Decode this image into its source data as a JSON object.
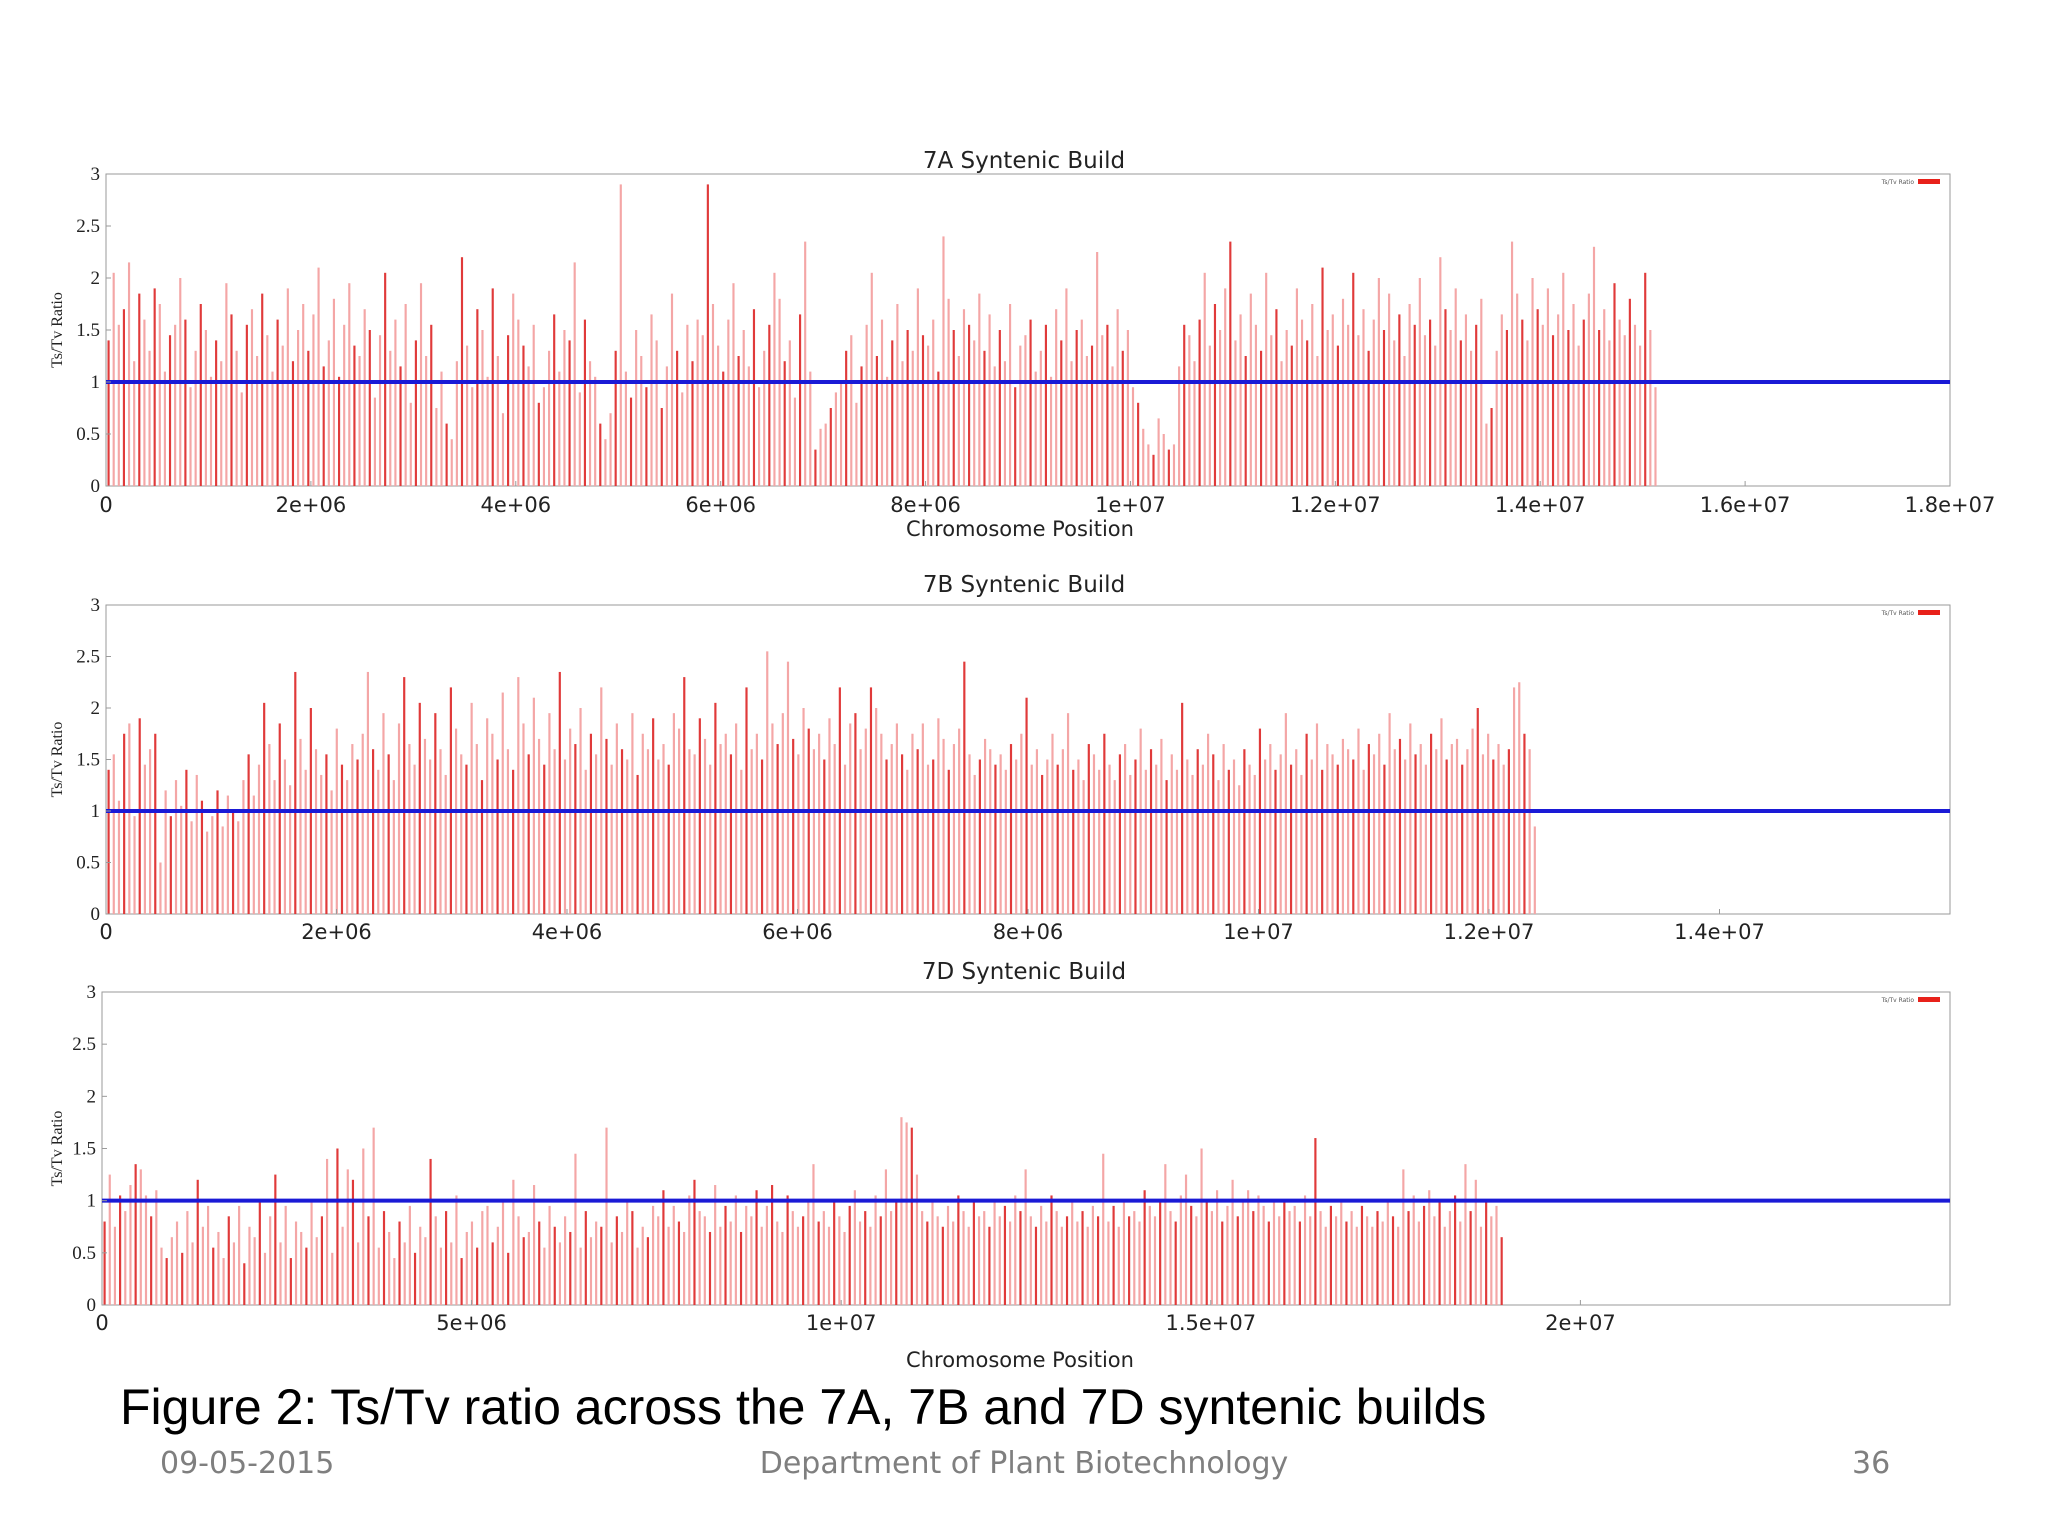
{
  "colors": {
    "bar_dark": "#e03a3a",
    "bar_light": "#f4a6a6",
    "reference_line": "#1a1ad6",
    "axis": "#9a9a9a",
    "legend": "#e8211a"
  },
  "chart_data": [
    {
      "type": "bar",
      "title": "7A Syntenic Build",
      "xlabel": "Chromosome Position",
      "ylabel": "Ts/Tv Ratio",
      "xlim": [
        0,
        18000000
      ],
      "ylim": [
        0,
        3
      ],
      "xticks": [
        0,
        2000000,
        4000000,
        6000000,
        8000000,
        10000000,
        12000000,
        14000000,
        16000000,
        18000000
      ],
      "xtick_labels": [
        "0",
        "2e+06",
        "4e+06",
        "6e+06",
        "8e+06",
        "1e+07",
        "1.2e+07",
        "1.4e+07",
        "1.6e+07",
        "1.8e+07"
      ],
      "yticks": [
        0,
        0.5,
        1,
        1.5,
        2,
        2.5,
        3
      ],
      "ytick_labels": [
        "0",
        "0.5",
        "1",
        "1.5",
        "2",
        "2.5",
        "3"
      ],
      "legend": "Ts/Tv Ratio",
      "legend_position": "top-right",
      "reference_line": 1,
      "series": [
        {
          "name": "Ts/Tv Ratio",
          "bin_start": 0,
          "bin_width": 50000,
          "values": [
            1.4,
            2.05,
            1.55,
            1.7,
            2.15,
            1.2,
            1.85,
            1.6,
            1.3,
            1.9,
            1.75,
            1.1,
            1.45,
            1.55,
            2.0,
            1.6,
            0.95,
            1.3,
            1.75,
            1.5,
            1.05,
            1.4,
            1.2,
            1.95,
            1.65,
            1.3,
            0.9,
            1.55,
            1.7,
            1.25,
            1.85,
            1.45,
            1.1,
            1.6,
            1.35,
            1.9,
            1.2,
            1.5,
            1.75,
            1.3,
            1.65,
            2.1,
            1.15,
            1.4,
            1.8,
            1.05,
            1.55,
            1.95,
            1.35,
            1.25,
            1.7,
            1.5,
            0.85,
            1.45,
            2.05,
            1.3,
            1.6,
            1.15,
            1.75,
            0.8,
            1.4,
            1.95,
            1.25,
            1.55,
            0.75,
            1.1,
            0.6,
            0.45,
            1.2,
            2.2,
            1.35,
            0.95,
            1.7,
            1.5,
            1.05,
            1.9,
            1.25,
            0.7,
            1.45,
            1.85,
            1.6,
            1.35,
            1.15,
            1.55,
            0.8,
            0.95,
            1.3,
            1.65,
            1.1,
            1.5,
            1.4,
            2.15,
            0.9,
            1.6,
            1.2,
            1.05,
            0.6,
            0.45,
            0.7,
            1.3,
            2.9,
            1.1,
            0.85,
            1.5,
            1.25,
            0.95,
            1.65,
            1.4,
            0.75,
            1.15,
            1.85,
            1.3,
            0.9,
            1.55,
            1.2,
            1.6,
            1.45,
            2.9,
            1.75,
            1.35,
            1.1,
            1.6,
            1.95,
            1.25,
            1.5,
            1.15,
            1.7,
            0.95,
            1.3,
            1.55,
            2.05,
            1.8,
            1.2,
            1.4,
            0.85,
            1.65,
            2.35,
            1.1,
            0.35,
            0.55,
            0.6,
            0.75,
            0.9,
            1.0,
            1.3,
            1.45,
            0.8,
            1.15,
            1.55,
            2.05,
            1.25,
            1.6,
            1.05,
            1.4,
            1.75,
            1.2,
            1.5,
            1.3,
            1.9,
            1.45,
            1.35,
            1.6,
            1.1,
            2.4,
            1.8,
            1.5,
            1.25,
            1.7,
            1.55,
            1.4,
            1.85,
            1.3,
            1.65,
            1.15,
            1.5,
            1.2,
            1.75,
            0.95,
            1.35,
            1.45,
            1.6,
            1.1,
            1.3,
            1.55,
            1.05,
            1.7,
            1.4,
            1.9,
            1.2,
            1.5,
            1.6,
            1.25,
            1.35,
            2.25,
            1.45,
            1.55,
            1.15,
            1.7,
            1.3,
            1.5,
            0.95,
            0.8,
            0.55,
            0.4,
            0.3,
            0.65,
            0.5,
            0.35,
            0.4,
            1.15,
            1.55,
            1.45,
            1.2,
            1.6,
            2.05,
            1.35,
            1.75,
            1.5,
            1.9,
            2.35,
            1.4,
            1.65,
            1.25,
            1.85,
            1.55,
            1.3,
            2.05,
            1.45,
            1.7,
            1.2,
            1.5,
            1.35,
            1.9,
            1.6,
            1.4,
            1.75,
            1.25,
            2.1,
            1.5,
            1.65,
            1.35,
            1.8,
            1.55,
            2.05,
            1.45,
            1.7,
            1.3,
            1.6,
            2.0,
            1.5,
            1.85,
            1.4,
            1.65,
            1.25,
            1.75,
            1.55,
            2.0,
            1.45,
            1.6,
            1.35,
            2.2,
            1.7,
            1.5,
            1.9,
            1.4,
            1.65,
            1.3,
            1.55,
            1.8,
            0.6,
            0.75,
            1.3,
            1.65,
            1.5,
            2.35,
            1.85,
            1.6,
            1.4,
            2.0,
            1.7,
            1.55,
            1.9,
            1.45,
            1.65,
            2.05,
            1.5,
            1.75,
            1.35,
            1.6,
            1.85,
            2.3,
            1.5,
            1.7,
            1.4,
            1.95,
            1.6,
            1.45,
            1.8,
            1.55,
            1.35,
            2.05,
            1.5,
            0.95
          ]
        }
      ]
    },
    {
      "type": "bar",
      "title": "7B Syntenic Build",
      "xlabel": "",
      "ylabel": "Ts/Tv Ratio",
      "xlim": [
        0,
        16000000
      ],
      "ylim": [
        0,
        3
      ],
      "xticks": [
        0,
        2000000,
        4000000,
        6000000,
        8000000,
        10000000,
        12000000,
        14000000
      ],
      "xtick_labels": [
        "0",
        "2e+06",
        "4e+06",
        "6e+06",
        "8e+06",
        "1e+07",
        "1.2e+07",
        "1.4e+07"
      ],
      "yticks": [
        0,
        0.5,
        1,
        1.5,
        2,
        2.5,
        3
      ],
      "ytick_labels": [
        "0",
        "0.5",
        "1",
        "1.5",
        "2",
        "2.5",
        "3"
      ],
      "legend": "Ts/Tv Ratio",
      "legend_position": "top-right",
      "reference_line": 1,
      "series": [
        {
          "name": "Ts/Tv Ratio",
          "bin_start": 0,
          "bin_width": 45000,
          "values": [
            1.4,
            1.55,
            1.1,
            1.75,
            1.85,
            0.95,
            1.9,
            1.45,
            1.6,
            1.75,
            0.5,
            1.2,
            0.95,
            1.3,
            1.05,
            1.4,
            0.9,
            1.35,
            1.1,
            0.8,
            0.95,
            1.2,
            0.85,
            1.15,
            1.0,
            0.9,
            1.3,
            1.55,
            1.15,
            1.45,
            2.05,
            1.65,
            1.3,
            1.85,
            1.5,
            1.25,
            2.35,
            1.7,
            1.4,
            2.0,
            1.6,
            1.35,
            1.55,
            1.2,
            1.8,
            1.45,
            1.3,
            1.65,
            1.5,
            1.75,
            2.35,
            1.6,
            1.4,
            1.95,
            1.55,
            1.3,
            1.85,
            2.3,
            1.65,
            1.45,
            2.05,
            1.7,
            1.5,
            1.95,
            1.6,
            1.35,
            2.2,
            1.8,
            1.55,
            1.45,
            2.05,
            1.65,
            1.3,
            1.9,
            1.75,
            1.5,
            2.15,
            1.6,
            1.4,
            2.3,
            1.85,
            1.55,
            2.1,
            1.7,
            1.45,
            1.95,
            1.6,
            2.35,
            1.5,
            1.8,
            1.65,
            2.0,
            1.4,
            1.75,
            1.55,
            2.2,
            1.7,
            1.45,
            1.85,
            1.6,
            1.5,
            1.95,
            1.35,
            1.75,
            1.6,
            1.9,
            1.5,
            1.65,
            1.45,
            1.95,
            1.8,
            2.3,
            1.6,
            1.55,
            1.9,
            1.7,
            1.45,
            2.05,
            1.65,
            1.75,
            1.55,
            1.85,
            1.4,
            2.2,
            1.6,
            1.75,
            1.5,
            2.55,
            1.85,
            1.65,
            1.95,
            2.45,
            1.7,
            1.55,
            2.0,
            1.8,
            1.6,
            1.75,
            1.5,
            1.9,
            1.65,
            2.2,
            1.45,
            1.85,
            1.95,
            1.6,
            1.8,
            2.2,
            2.0,
            1.75,
            1.5,
            1.65,
            1.85,
            1.55,
            1.4,
            1.75,
            1.6,
            1.85,
            1.45,
            1.5,
            1.9,
            1.7,
            1.4,
            1.65,
            1.8,
            2.45,
            1.55,
            1.35,
            1.5,
            1.7,
            1.6,
            1.45,
            1.55,
            1.4,
            1.65,
            1.5,
            1.75,
            2.1,
            1.45,
            1.6,
            1.35,
            1.5,
            1.75,
            1.45,
            1.6,
            1.95,
            1.4,
            1.5,
            1.3,
            1.65,
            1.55,
            1.4,
            1.75,
            1.45,
            1.3,
            1.55,
            1.65,
            1.35,
            1.5,
            1.8,
            1.4,
            1.6,
            1.45,
            1.7,
            1.3,
            1.55,
            1.4,
            2.05,
            1.5,
            1.35,
            1.6,
            1.45,
            1.75,
            1.55,
            1.3,
            1.65,
            1.4,
            1.5,
            1.25,
            1.6,
            1.45,
            1.35,
            1.8,
            1.5,
            1.65,
            1.4,
            1.55,
            1.95,
            1.45,
            1.6,
            1.35,
            1.75,
            1.5,
            1.85,
            1.4,
            1.65,
            1.55,
            1.45,
            1.7,
            1.6,
            1.5,
            1.8,
            1.4,
            1.65,
            1.55,
            1.75,
            1.45,
            1.95,
            1.6,
            1.7,
            1.5,
            1.85,
            1.55,
            1.65,
            1.45,
            1.75,
            1.6,
            1.9,
            1.5,
            1.65,
            1.7,
            1.45,
            1.6,
            1.8,
            2.0,
            1.55,
            1.75,
            1.5,
            1.65,
            1.45,
            1.6,
            2.2,
            2.25,
            1.75,
            1.6,
            0.85
          ]
        }
      ]
    },
    {
      "type": "bar",
      "title": "7D Syntenic Build",
      "xlabel": "Chromosome Position",
      "ylabel": "Ts/Tv Ratio",
      "xlim": [
        0,
        25000000
      ],
      "ylim": [
        0,
        3
      ],
      "xticks": [
        0,
        5000000,
        10000000,
        15000000,
        20000000
      ],
      "xtick_labels": [
        "0",
        "5e+06",
        "1e+07",
        "1.5e+07",
        "2e+07"
      ],
      "yticks": [
        0,
        0.5,
        1,
        1.5,
        2,
        2.5,
        3
      ],
      "ytick_labels": [
        "0",
        "0.5",
        "1",
        "1.5",
        "2",
        "2.5",
        "3"
      ],
      "legend": "Ts/Tv Ratio",
      "legend_position": "top-right",
      "reference_line": 1,
      "series": [
        {
          "name": "Ts/Tv Ratio",
          "bin_start": 0,
          "bin_width": 70000,
          "values": [
            0.8,
            1.25,
            0.75,
            1.05,
            0.9,
            1.15,
            1.35,
            1.3,
            1.05,
            0.85,
            1.1,
            0.55,
            0.45,
            0.65,
            0.8,
            0.5,
            0.9,
            0.6,
            1.2,
            0.75,
            0.95,
            0.55,
            0.7,
            0.45,
            0.85,
            0.6,
            0.95,
            0.4,
            0.75,
            0.65,
            1.0,
            0.5,
            0.85,
            1.25,
            0.6,
            0.95,
            0.45,
            0.8,
            0.7,
            0.55,
            1.0,
            0.65,
            0.85,
            1.4,
            0.5,
            1.5,
            0.75,
            1.3,
            1.2,
            0.6,
            1.5,
            0.85,
            1.7,
            0.55,
            0.9,
            0.7,
            0.45,
            0.8,
            0.6,
            0.95,
            0.5,
            0.75,
            0.65,
            1.4,
            0.85,
            0.55,
            0.9,
            0.6,
            1.05,
            0.45,
            0.7,
            0.8,
            0.55,
            0.9,
            0.95,
            0.6,
            0.75,
            1.0,
            0.5,
            1.2,
            0.85,
            0.65,
            0.7,
            1.15,
            0.8,
            0.55,
            0.95,
            0.75,
            0.6,
            0.85,
            0.7,
            1.45,
            0.55,
            0.9,
            0.65,
            0.8,
            0.75,
            1.7,
            0.6,
            0.85,
            0.7,
            1.0,
            0.9,
            0.55,
            0.75,
            0.65,
            0.95,
            0.85,
            1.1,
            0.75,
            0.95,
            0.8,
            0.7,
            1.05,
            1.2,
            0.9,
            0.85,
            0.7,
            1.15,
            0.75,
            0.95,
            0.8,
            1.05,
            0.7,
            0.95,
            0.85,
            1.1,
            0.75,
            0.95,
            1.15,
            0.8,
            0.7,
            1.05,
            0.9,
            0.75,
            0.85,
            1.0,
            1.35,
            0.8,
            0.9,
            0.75,
            1.0,
            0.85,
            0.7,
            0.95,
            1.1,
            0.8,
            0.9,
            0.75,
            1.05,
            0.85,
            1.3,
            0.9,
            1.0,
            1.8,
            1.75,
            1.7,
            1.25,
            0.9,
            0.8,
            1.0,
            0.85,
            0.75,
            0.95,
            0.8,
            1.05,
            0.9,
            0.75,
            1.0,
            0.85,
            0.9,
            0.75,
            1.0,
            0.85,
            0.95,
            0.8,
            1.05,
            0.9,
            1.3,
            0.85,
            0.75,
            0.95,
            0.8,
            1.05,
            0.9,
            0.75,
            0.85,
            1.0,
            0.8,
            0.9,
            0.75,
            0.95,
            0.85,
            1.45,
            0.8,
            0.95,
            0.75,
            1.0,
            0.85,
            0.9,
            0.8,
            1.1,
            0.95,
            0.85,
            1.0,
            1.35,
            0.9,
            0.8,
            1.05,
            1.25,
            0.95,
            0.85,
            1.5,
            1.0,
            0.9,
            1.1,
            0.8,
            0.95,
            1.2,
            0.85,
            1.0,
            1.1,
            0.9,
            1.05,
            0.95,
            0.8,
            1.0,
            0.85,
            1.0,
            0.9,
            0.95,
            0.8,
            1.05,
            0.85,
            1.6,
            0.9,
            0.75,
            0.95,
            0.85,
            1.0,
            0.8,
            0.9,
            0.75,
            0.95,
            0.85,
            0.75,
            0.9,
            0.8,
            1.0,
            0.85,
            0.75,
            1.3,
            0.9,
            1.05,
            0.8,
            0.95,
            1.1,
            0.85,
            1.0,
            0.75,
            0.9,
            1.05,
            0.8,
            1.35,
            0.9,
            1.2,
            0.75,
            1.0,
            0.85,
            0.95,
            0.65
          ]
        }
      ]
    }
  ],
  "caption": "Figure 2: Ts/Tv ratio across the 7A, 7B and 7D syntenic builds",
  "footer": {
    "date": "09-05-2015",
    "department": "Department of Plant Biotechnology",
    "page": "36"
  }
}
